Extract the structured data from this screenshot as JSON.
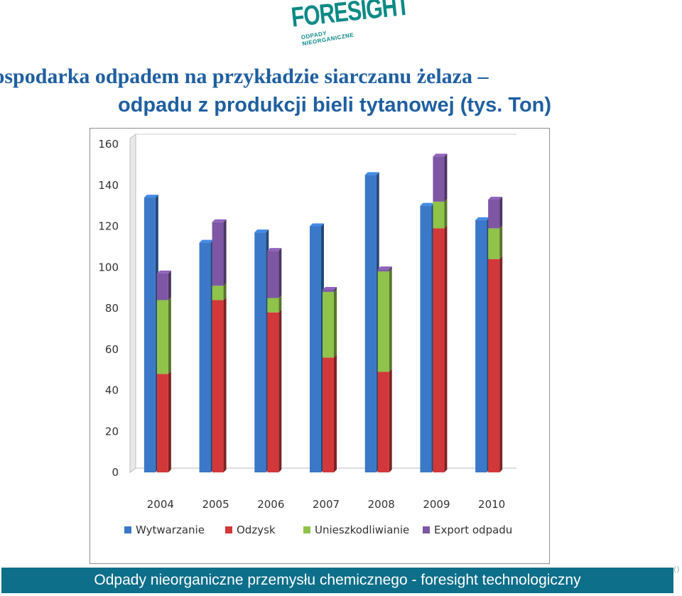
{
  "logo": {
    "name": "FORESIGHT",
    "sub": "ODPADY NIEORGANICZNE"
  },
  "title": {
    "line1": "Gospodarka odpadem na przykładzie siarczanu żelaza –",
    "line2": "odpadu z produkcji bieli tytanowej (tys. Ton)"
  },
  "colors": {
    "blue": "#3b78c8",
    "red": "#d2383a",
    "green": "#8fc34a",
    "purple": "#7d57a3",
    "footer": "#0d6f8a",
    "title": "#1f5fa0"
  },
  "chart_data": {
    "type": "bar",
    "stacked_groups": true,
    "categories": [
      "2004",
      "2005",
      "2006",
      "2007",
      "2008",
      "2009",
      "2010"
    ],
    "ylim": [
      0,
      160
    ],
    "yticks": [
      0,
      20,
      40,
      60,
      80,
      100,
      120,
      140,
      160
    ],
    "series": [
      {
        "name": "Wytwarzanie",
        "stack": "a",
        "values": [
          134,
          112,
          117,
          120,
          145,
          130,
          123
        ]
      },
      {
        "name": "Odzysk",
        "stack": "b",
        "values": [
          48,
          84,
          78,
          56,
          49,
          119,
          104
        ]
      },
      {
        "name": "Unieszkodliwianie",
        "stack": "b",
        "values": [
          36,
          7,
          7,
          32,
          49,
          13,
          15
        ]
      },
      {
        "name": "Export odpadu",
        "stack": "b",
        "values": [
          13,
          31,
          23,
          1,
          1,
          22,
          14
        ]
      }
    ],
    "legend_position": "bottom"
  },
  "footer": {
    "text": "Odpady nieorganiczne przemysłu chemicznego - foresight technologiczny"
  },
  "page_number": "()"
}
